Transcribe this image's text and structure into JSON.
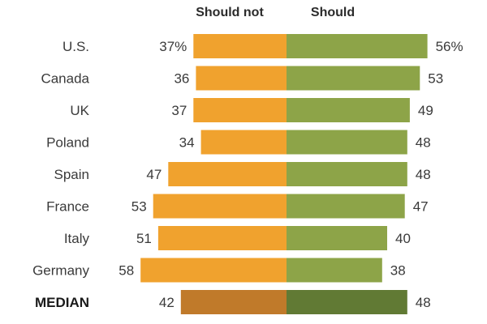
{
  "chart_data": {
    "type": "bar",
    "orientation": "diverging-horizontal",
    "headers": {
      "left": "Should not",
      "right": "Should"
    },
    "categories": [
      "U.S.",
      "Canada",
      "UK",
      "Poland",
      "Spain",
      "France",
      "Italy",
      "Germany",
      "MEDIAN"
    ],
    "series": [
      {
        "name": "Should not",
        "values": [
          37,
          36,
          37,
          34,
          47,
          53,
          51,
          58,
          42
        ],
        "labels": [
          "37%",
          "36",
          "37",
          "34",
          "47",
          "53",
          "51",
          "58",
          "42"
        ]
      },
      {
        "name": "Should",
        "values": [
          56,
          53,
          49,
          48,
          48,
          47,
          40,
          38,
          48
        ],
        "labels": [
          "56%",
          "53",
          "49",
          "48",
          "48",
          "47",
          "40",
          "38",
          "48"
        ]
      }
    ],
    "colors": {
      "should_not": "#f0a22e",
      "should": "#8da448",
      "median_should_not": "#c07a2a",
      "median_should": "#617a34"
    },
    "summary_category": "MEDIAN"
  }
}
